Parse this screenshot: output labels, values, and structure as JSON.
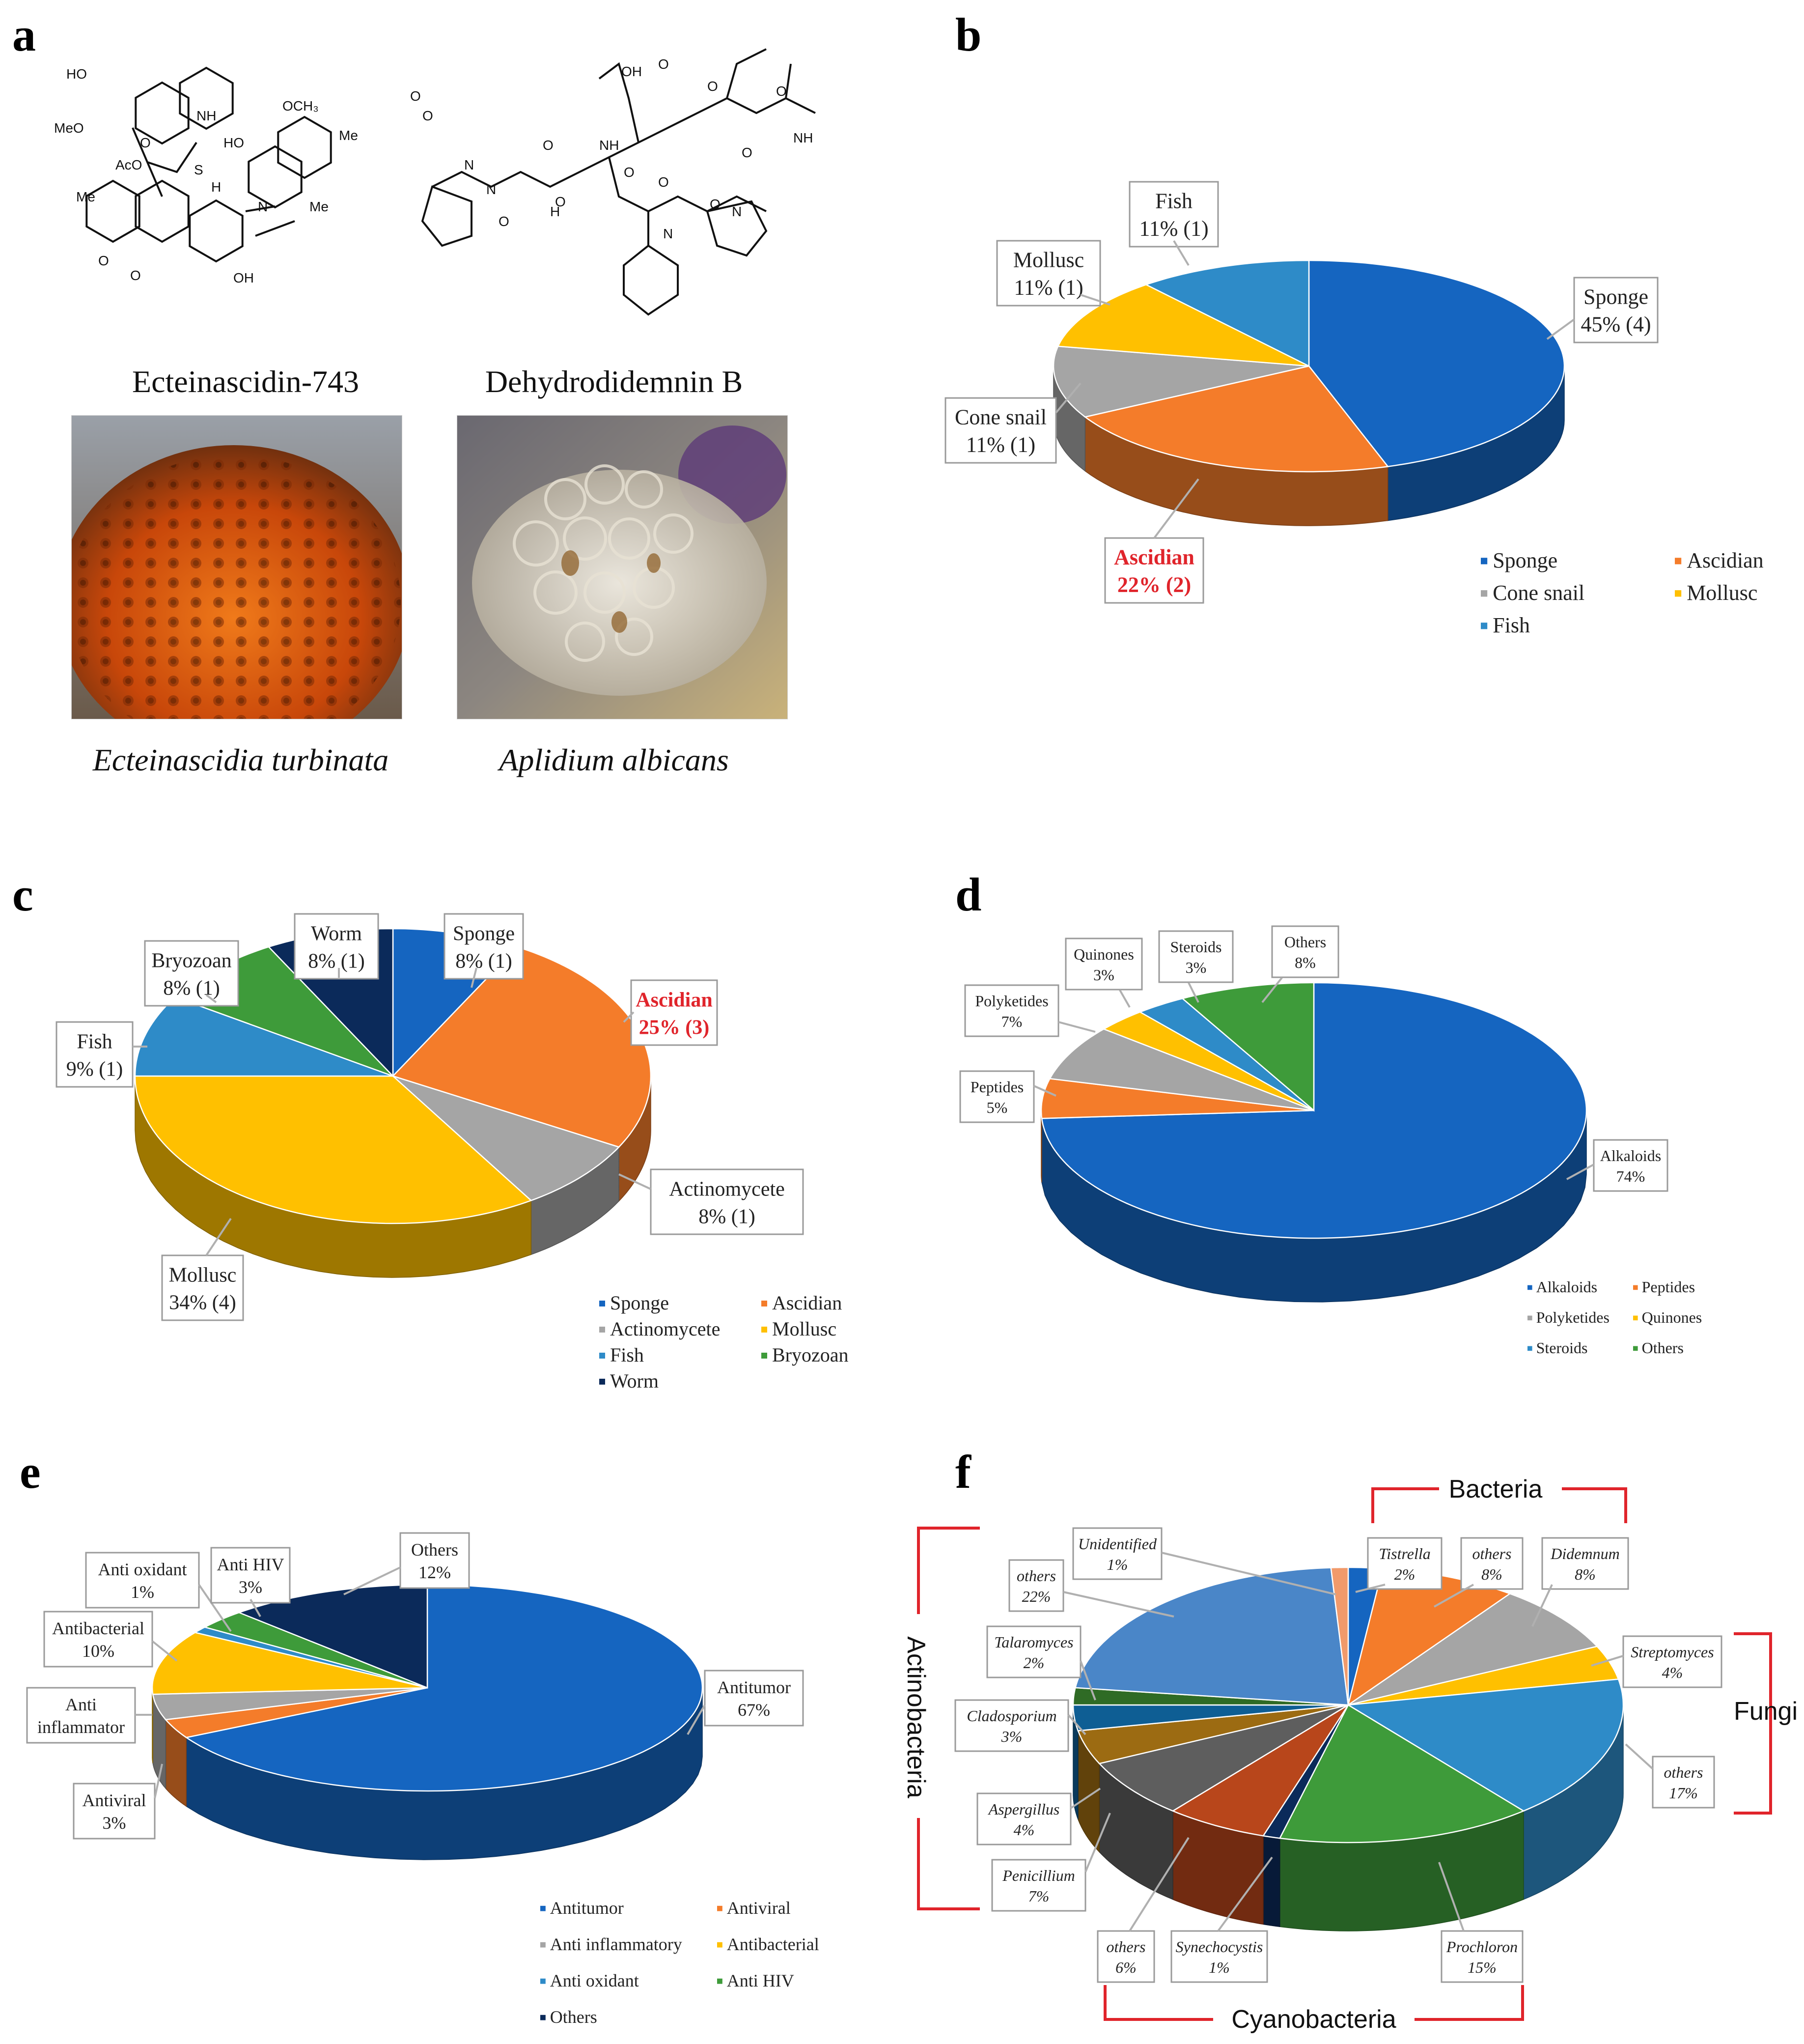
{
  "panels": {
    "a": {
      "label": "a",
      "compound_1": "Ecteinascidin-743",
      "compound_2": "Dehydrodidemnin B",
      "species_1": "Ecteinascidia turbinata",
      "species_2": "Aplidium albicans",
      "atoms_1": [
        "HO",
        "MeO",
        "NH",
        "OCH₃",
        "HO",
        "Me",
        "AcO",
        "O",
        "S",
        "Me",
        "H",
        "N",
        "Me",
        "O",
        "O",
        "OH"
      ],
      "atoms_2": [
        "OH",
        "O",
        "O",
        "O",
        "NH",
        "O",
        "NH",
        "O",
        "O",
        "N",
        "O",
        "O",
        "N",
        "H",
        "O",
        "O",
        "N",
        "O",
        "N",
        "O"
      ]
    },
    "b": {
      "label": "b"
    },
    "c": {
      "label": "c"
    },
    "d": {
      "label": "d"
    },
    "e": {
      "label": "e"
    },
    "f": {
      "label": "f"
    }
  },
  "chart_data": [
    {
      "panel": "b",
      "type": "pie",
      "slices": [
        {
          "label": "Sponge",
          "value": 45,
          "text": "45% (4)",
          "color": "#1565C0"
        },
        {
          "label": "Ascidian",
          "value": 22,
          "text": "22% (2)",
          "color": "#F47C2A",
          "highlight": true
        },
        {
          "label": "Cone snail",
          "value": 11,
          "text": "11% (1)",
          "color": "#A5A5A5"
        },
        {
          "label": "Mollusc",
          "value": 11,
          "text": "11% (1)",
          "color": "#FFC000"
        },
        {
          "label": "Fish",
          "value": 11,
          "text": "11% (1)",
          "color": "#2E8BC8"
        }
      ],
      "legend": [
        "Sponge",
        "Ascidian",
        "Cone snail",
        "Mollusc",
        "Fish"
      ],
      "legend_placement": "bottom-right"
    },
    {
      "panel": "c",
      "type": "pie",
      "slices": [
        {
          "label": "Sponge",
          "value": 8,
          "text": "8% (1)",
          "color": "#1565C0"
        },
        {
          "label": "Ascidian",
          "value": 25,
          "text": "25% (3)",
          "color": "#F47C2A",
          "highlight": true
        },
        {
          "label": "Actinomycete",
          "value": 8,
          "text": "8% (1)",
          "color": "#A5A5A5"
        },
        {
          "label": "Mollusc",
          "value": 34,
          "text": "34% (4)",
          "color": "#FFC000"
        },
        {
          "label": "Fish",
          "value": 9,
          "text": "9% (1)",
          "color": "#2E8BC8"
        },
        {
          "label": "Bryozoan",
          "value": 8,
          "text": "8% (1)",
          "color": "#3E9B3A"
        },
        {
          "label": "Worm",
          "value": 8,
          "text": "8% (1)",
          "color": "#0B2A5A"
        }
      ],
      "legend": [
        "Sponge",
        "Ascidian",
        "Actinomycete",
        "Mollusc",
        "Fish",
        "Bryozoan",
        "Worm"
      ],
      "legend_placement": "bottom-right"
    },
    {
      "panel": "d",
      "type": "pie",
      "slices": [
        {
          "label": "Alkaloids",
          "value": 74,
          "text": "74%",
          "color": "#1565C0"
        },
        {
          "label": "Peptides",
          "value": 5,
          "text": "5%",
          "color": "#F47C2A"
        },
        {
          "label": "Polyketides",
          "value": 7,
          "text": "7%",
          "color": "#A5A5A5"
        },
        {
          "label": "Quinones",
          "value": 3,
          "text": "3%",
          "color": "#FFC000"
        },
        {
          "label": "Steroids",
          "value": 3,
          "text": "3%",
          "color": "#2E8BC8"
        },
        {
          "label": "Others",
          "value": 8,
          "text": "8%",
          "color": "#3E9B3A"
        }
      ],
      "legend": [
        "Alkaloids",
        "Peptides",
        "Polyketides",
        "Quinones",
        "Steroids",
        "Others"
      ],
      "legend_placement": "bottom-right"
    },
    {
      "panel": "e",
      "type": "pie",
      "slices": [
        {
          "label": "Antitumor",
          "value": 67,
          "text": "67%",
          "color": "#1565C0"
        },
        {
          "label": "Antiviral",
          "value": 3,
          "text": "3%",
          "color": "#F47C2A"
        },
        {
          "label": "Anti inflammator",
          "legend_label": "Anti inflammatory",
          "value": 4,
          "text": "",
          "color": "#A5A5A5"
        },
        {
          "label": "Antibacterial",
          "value": 10,
          "text": "10%",
          "color": "#FFC000"
        },
        {
          "label": "Anti oxidant",
          "value": 1,
          "text": "1%",
          "color": "#2E8BC8"
        },
        {
          "label": "Anti HIV",
          "value": 3,
          "text": "3%",
          "color": "#3E9B3A"
        },
        {
          "label": "Others",
          "value": 12,
          "text": "12%",
          "color": "#0B2A5A"
        }
      ],
      "legend": [
        "Antitumor",
        "Antiviral",
        "Anti inflammatory",
        "Antibacterial",
        "Anti oxidant",
        "Anti HIV",
        "Others"
      ],
      "legend_placement": "bottom-right"
    },
    {
      "panel": "f",
      "type": "pie",
      "slices": [
        {
          "label": "Tistrella",
          "value": 2,
          "text": "2%",
          "color": "#1565C0",
          "italic": true
        },
        {
          "label": "others",
          "value": 8,
          "text": "8%",
          "color": "#F47C2A",
          "italic": true
        },
        {
          "label": "Didemnum",
          "value": 8,
          "text": "8%",
          "color": "#A5A5A5",
          "italic": true
        },
        {
          "label": "Streptomyces",
          "value": 4,
          "text": "4%",
          "color": "#FFC000",
          "italic": true
        },
        {
          "label": "others",
          "value": 17,
          "text": "17%",
          "color": "#2E8BC8",
          "italic": true
        },
        {
          "label": "Prochloron",
          "value": 15,
          "text": "15%",
          "color": "#3E9B3A",
          "italic": true
        },
        {
          "label": "Synechocystis",
          "value": 1,
          "text": "1%",
          "color": "#0B2A5A",
          "italic": true
        },
        {
          "label": "others",
          "value": 6,
          "text": "6%",
          "color": "#B8461B",
          "italic": true
        },
        {
          "label": "Penicillium",
          "value": 7,
          "text": "7%",
          "color": "#5E5E5E",
          "italic": true
        },
        {
          "label": "Aspergillus",
          "value": 4,
          "text": "4%",
          "color": "#9C6B12",
          "italic": true
        },
        {
          "label": "Cladosporium",
          "value": 3,
          "text": "3%",
          "color": "#0E5E94",
          "italic": true
        },
        {
          "label": "Talaromyces",
          "value": 2,
          "text": "2%",
          "color": "#2F6B25",
          "italic": true
        },
        {
          "label": "others",
          "value": 22,
          "text": "22%",
          "color": "#4A86C8",
          "italic": true
        },
        {
          "label": "Unidentified",
          "value": 1,
          "text": "1%",
          "color": "#F19A6B",
          "italic": true
        }
      ],
      "groups": [
        "Bacteria",
        "Fungi",
        "Cyanobacteria",
        "Actinobacteria"
      ]
    }
  ]
}
